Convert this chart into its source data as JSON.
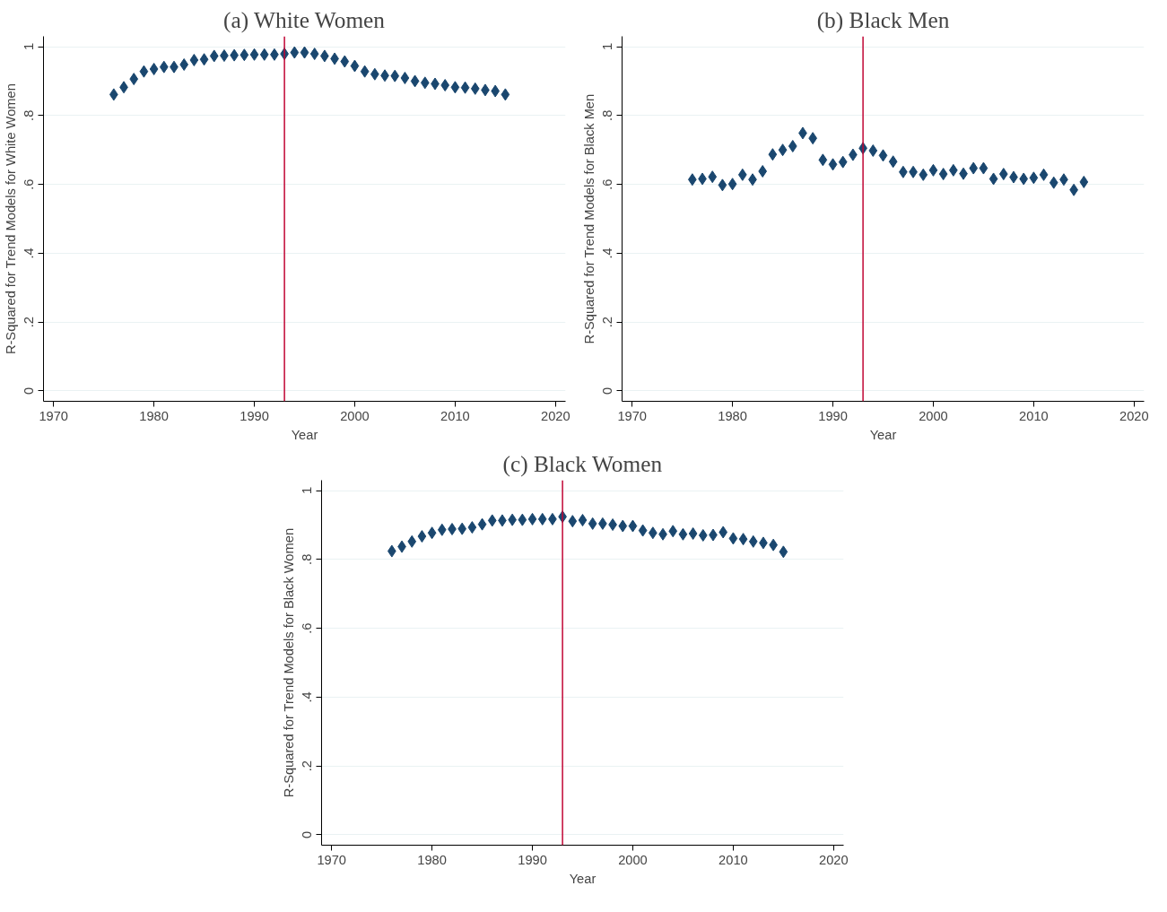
{
  "chart_data": [
    {
      "type": "scatter",
      "title": "(a) White Women",
      "xlabel": "Year",
      "ylabel": "R-Squared for Trend Models for White Women",
      "x": [
        1976,
        1977,
        1978,
        1979,
        1980,
        1981,
        1982,
        1983,
        1984,
        1985,
        1986,
        1987,
        1988,
        1989,
        1990,
        1991,
        1992,
        1993,
        1994,
        1995,
        1996,
        1997,
        1998,
        1999,
        2000,
        2001,
        2002,
        2003,
        2004,
        2005,
        2006,
        2007,
        2008,
        2009,
        2010,
        2011,
        2012,
        2013,
        2014,
        2015
      ],
      "series": [
        {
          "color": "#1a476f",
          "values": [
            0.861,
            0.882,
            0.906,
            0.928,
            0.935,
            0.941,
            0.941,
            0.948,
            0.961,
            0.963,
            0.973,
            0.974,
            0.975,
            0.976,
            0.977,
            0.977,
            0.977,
            0.979,
            0.983,
            0.983,
            0.979,
            0.973,
            0.965,
            0.957,
            0.944,
            0.928,
            0.92,
            0.916,
            0.915,
            0.909,
            0.9,
            0.895,
            0.892,
            0.888,
            0.882,
            0.881,
            0.878,
            0.874,
            0.871,
            0.861
          ]
        }
      ],
      "xlim": [
        1969,
        2021
      ],
      "ylim": [
        -0.03,
        1.03
      ],
      "xticks": [
        1970,
        1980,
        1990,
        2000,
        2010,
        2020
      ],
      "yticks": [
        0,
        {
          "value": 0.2,
          "label": ".2"
        },
        {
          "value": 0.4,
          "label": ".4"
        },
        {
          "value": 0.6,
          "label": ".6"
        },
        {
          "value": 0.8,
          "label": ".8"
        },
        1
      ],
      "grid": "y",
      "marker": "diamond",
      "ref_lines": [
        {
          "axis": "x",
          "value": 1993,
          "color": "#c10534"
        }
      ]
    },
    {
      "type": "scatter",
      "title": "(b) Black Men",
      "xlabel": "Year",
      "ylabel": "R-Squared for Trend Models for Black Men",
      "x": [
        1976,
        1977,
        1978,
        1979,
        1980,
        1981,
        1982,
        1983,
        1984,
        1985,
        1986,
        1987,
        1988,
        1989,
        1990,
        1991,
        1992,
        1993,
        1994,
        1995,
        1996,
        1997,
        1998,
        1999,
        2000,
        2001,
        2002,
        2003,
        2004,
        2005,
        2006,
        2007,
        2008,
        2009,
        2010,
        2011,
        2012,
        2013,
        2014,
        2015
      ],
      "series": [
        {
          "color": "#1a476f",
          "values": [
            0.614,
            0.616,
            0.622,
            0.598,
            0.601,
            0.628,
            0.614,
            0.638,
            0.687,
            0.7,
            0.711,
            0.749,
            0.734,
            0.671,
            0.658,
            0.665,
            0.686,
            0.705,
            0.698,
            0.684,
            0.666,
            0.636,
            0.636,
            0.628,
            0.641,
            0.63,
            0.641,
            0.631,
            0.647,
            0.647,
            0.616,
            0.63,
            0.621,
            0.616,
            0.619,
            0.628,
            0.605,
            0.614,
            0.584,
            0.607
          ]
        }
      ],
      "xlim": [
        1969,
        2021
      ],
      "ylim": [
        -0.03,
        1.03
      ],
      "xticks": [
        1970,
        1980,
        1990,
        2000,
        2010,
        2020
      ],
      "yticks": [
        0,
        {
          "value": 0.2,
          "label": ".2"
        },
        {
          "value": 0.4,
          "label": ".4"
        },
        {
          "value": 0.6,
          "label": ".6"
        },
        {
          "value": 0.8,
          "label": ".8"
        },
        1
      ],
      "grid": "y",
      "marker": "diamond",
      "ref_lines": [
        {
          "axis": "x",
          "value": 1993,
          "color": "#c10534"
        }
      ]
    },
    {
      "type": "scatter",
      "title": "(c) Black Women",
      "xlabel": "Year",
      "ylabel": "R-Squared for Trend Models for Black Women",
      "x": [
        1976,
        1977,
        1978,
        1979,
        1980,
        1981,
        1982,
        1983,
        1984,
        1985,
        1986,
        1987,
        1988,
        1989,
        1990,
        1991,
        1992,
        1993,
        1994,
        1995,
        1996,
        1997,
        1998,
        1999,
        2000,
        2001,
        2002,
        2003,
        2004,
        2005,
        2006,
        2007,
        2008,
        2009,
        2010,
        2011,
        2012,
        2013,
        2014,
        2015
      ],
      "series": [
        {
          "color": "#1a476f",
          "values": [
            0.824,
            0.837,
            0.852,
            0.867,
            0.877,
            0.886,
            0.888,
            0.889,
            0.893,
            0.902,
            0.913,
            0.913,
            0.915,
            0.915,
            0.917,
            0.917,
            0.917,
            0.924,
            0.911,
            0.914,
            0.904,
            0.904,
            0.901,
            0.897,
            0.897,
            0.884,
            0.877,
            0.873,
            0.882,
            0.873,
            0.875,
            0.87,
            0.871,
            0.879,
            0.861,
            0.859,
            0.852,
            0.848,
            0.842,
            0.822
          ]
        }
      ],
      "xlim": [
        1969,
        2021
      ],
      "ylim": [
        -0.03,
        1.03
      ],
      "xticks": [
        1970,
        1980,
        1990,
        2000,
        2010,
        2020
      ],
      "yticks": [
        0,
        {
          "value": 0.2,
          "label": ".2"
        },
        {
          "value": 0.4,
          "label": ".4"
        },
        {
          "value": 0.6,
          "label": ".6"
        },
        {
          "value": 0.8,
          "label": ".8"
        },
        1
      ],
      "grid": "y",
      "marker": "diamond",
      "ref_lines": [
        {
          "axis": "x",
          "value": 1993,
          "color": "#c10534"
        }
      ]
    }
  ]
}
